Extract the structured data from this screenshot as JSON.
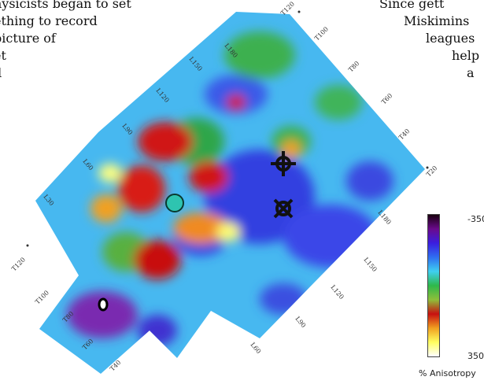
{
  "background_text": {
    "left_lines": [
      "hysicists began to set",
      "ething to record",
      "picture of",
      "et",
      "d"
    ],
    "right_lines": [
      "Since gett",
      "Miskimins",
      "leagues",
      "help",
      "a"
    ]
  },
  "map": {
    "grid_labels_top": [
      "L180",
      "L150",
      "L120",
      "L90",
      "L60",
      "L30"
    ],
    "grid_labels_right": [
      "T120",
      "T100",
      "T80",
      "T60",
      "T40",
      "T20"
    ],
    "grid_labels_left": [
      "T120",
      "T100",
      "T80",
      "T60",
      "T40"
    ],
    "grid_labels_bottom": [
      "L180",
      "L150",
      "L120",
      "L90",
      "L60"
    ]
  },
  "colorbar": {
    "top_label": "-350",
    "bottom_label": "350",
    "title": "% Anisotropy",
    "colors": [
      "#1a0010",
      "#6a0a8c",
      "#3a1ee0",
      "#2f6ef0",
      "#3fd0f0",
      "#2eb84a",
      "#8fbf3a",
      "#c81010",
      "#f0a020",
      "#ffff60",
      "#ffffff"
    ]
  },
  "markers": {
    "teal_circle_color": "#2ec4b0"
  }
}
